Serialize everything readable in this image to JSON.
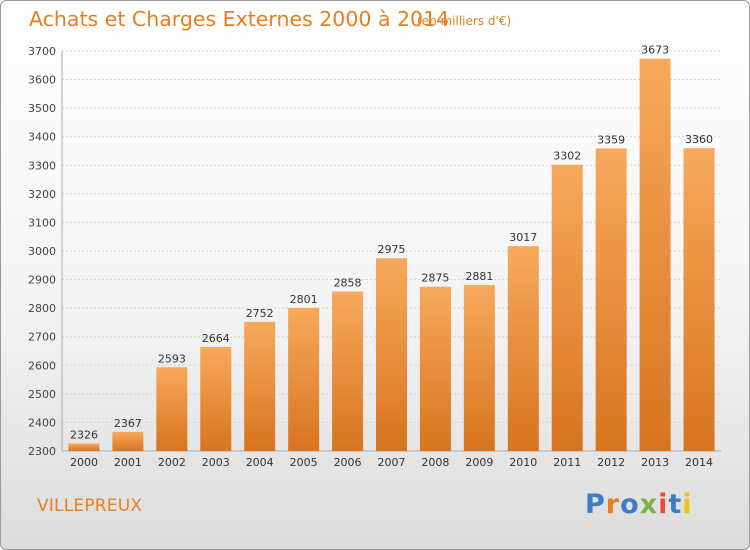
{
  "title": "Achats et Charges Externes 2000 à 2014",
  "subtitle": "(en milliers d'€)",
  "commune": "VILLEPREUX",
  "logo": {
    "text": "Proxiti",
    "letters": [
      "P",
      "r",
      "o",
      "x",
      "i",
      "t",
      "i"
    ],
    "colors": [
      "#3a7fc4",
      "#e67e22",
      "#3a7fc4",
      "#7cb342",
      "#e74c3c",
      "#3a7fc4",
      "#f1c40f"
    ]
  },
  "colors": {
    "bar_light": "#f7a95c",
    "bar_dark": "#d8741f",
    "title": "#e67e22"
  },
  "chart_data": {
    "type": "bar",
    "categories": [
      "2000",
      "2001",
      "2002",
      "2003",
      "2004",
      "2005",
      "2006",
      "2007",
      "2008",
      "2009",
      "2010",
      "2011",
      "2012",
      "2013",
      "2014"
    ],
    "values": [
      2326,
      2367,
      2593,
      2664,
      2752,
      2801,
      2858,
      2975,
      2875,
      2881,
      3017,
      3302,
      3359,
      3673,
      3360
    ],
    "yticks": [
      2300,
      2400,
      2500,
      2600,
      2700,
      2800,
      2900,
      3000,
      3100,
      3200,
      3300,
      3400,
      3500,
      3600,
      3700
    ],
    "ylim": [
      2300,
      3700
    ],
    "grid": true
  }
}
